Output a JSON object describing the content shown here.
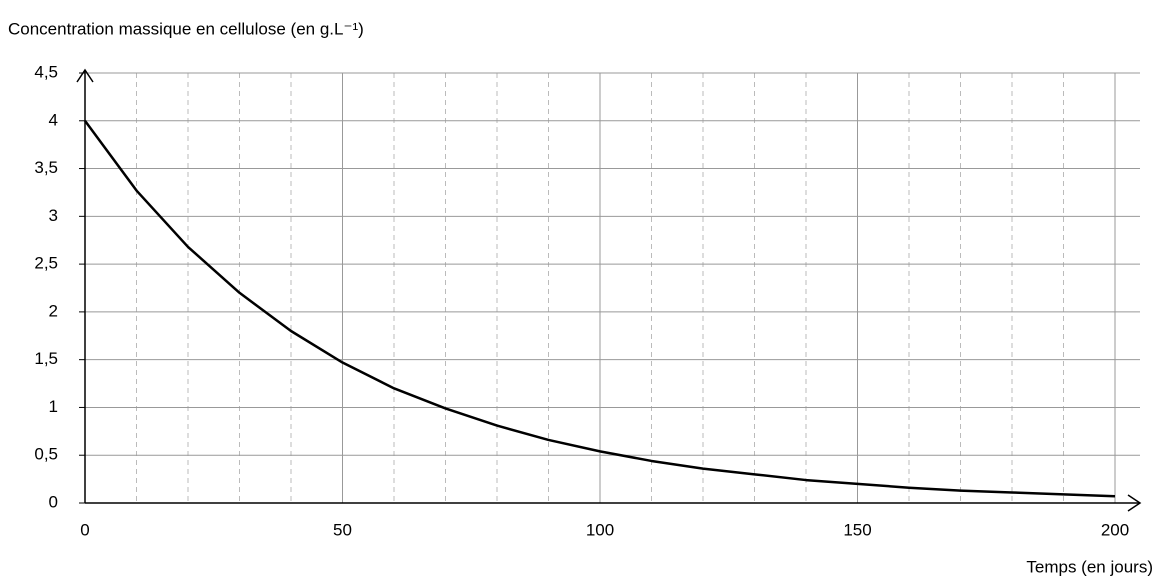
{
  "chart_data": {
    "type": "line",
    "title": "Concentration massique en cellulose (en g.L⁻¹)",
    "x_label": "Temps (en jours)",
    "x": [
      0,
      10,
      20,
      30,
      40,
      50,
      60,
      70,
      80,
      90,
      100,
      110,
      120,
      130,
      140,
      150,
      160,
      170,
      180,
      190,
      200
    ],
    "series": [
      {
        "color": "#000000",
        "values": [
          4,
          3.27,
          2.68,
          2.2,
          1.8,
          1.47,
          1.2,
          0.99,
          0.81,
          0.66,
          0.54,
          0.44,
          0.36,
          0.3,
          0.24,
          0.2,
          0.16,
          0.13,
          0.11,
          0.09,
          0.07
        ]
      }
    ],
    "xlim": [
      0,
      200
    ],
    "ylim": [
      0,
      4.5
    ],
    "xticks": [
      0,
      50,
      100,
      150,
      200
    ],
    "x_minor_ticks": [
      10,
      20,
      30,
      40,
      60,
      70,
      80,
      90,
      110,
      120,
      130,
      140,
      160,
      170,
      180,
      190
    ],
    "yticks": [
      0,
      {
        "value": 0.5,
        "label": "0,5"
      },
      1,
      {
        "value": 1.5,
        "label": "1,5"
      },
      2,
      {
        "value": 2.5,
        "label": "2,5"
      },
      3,
      {
        "value": 3.5,
        "label": "3,5"
      },
      4,
      {
        "value": 4.5,
        "label": "4,5"
      }
    ],
    "grid": true
  }
}
